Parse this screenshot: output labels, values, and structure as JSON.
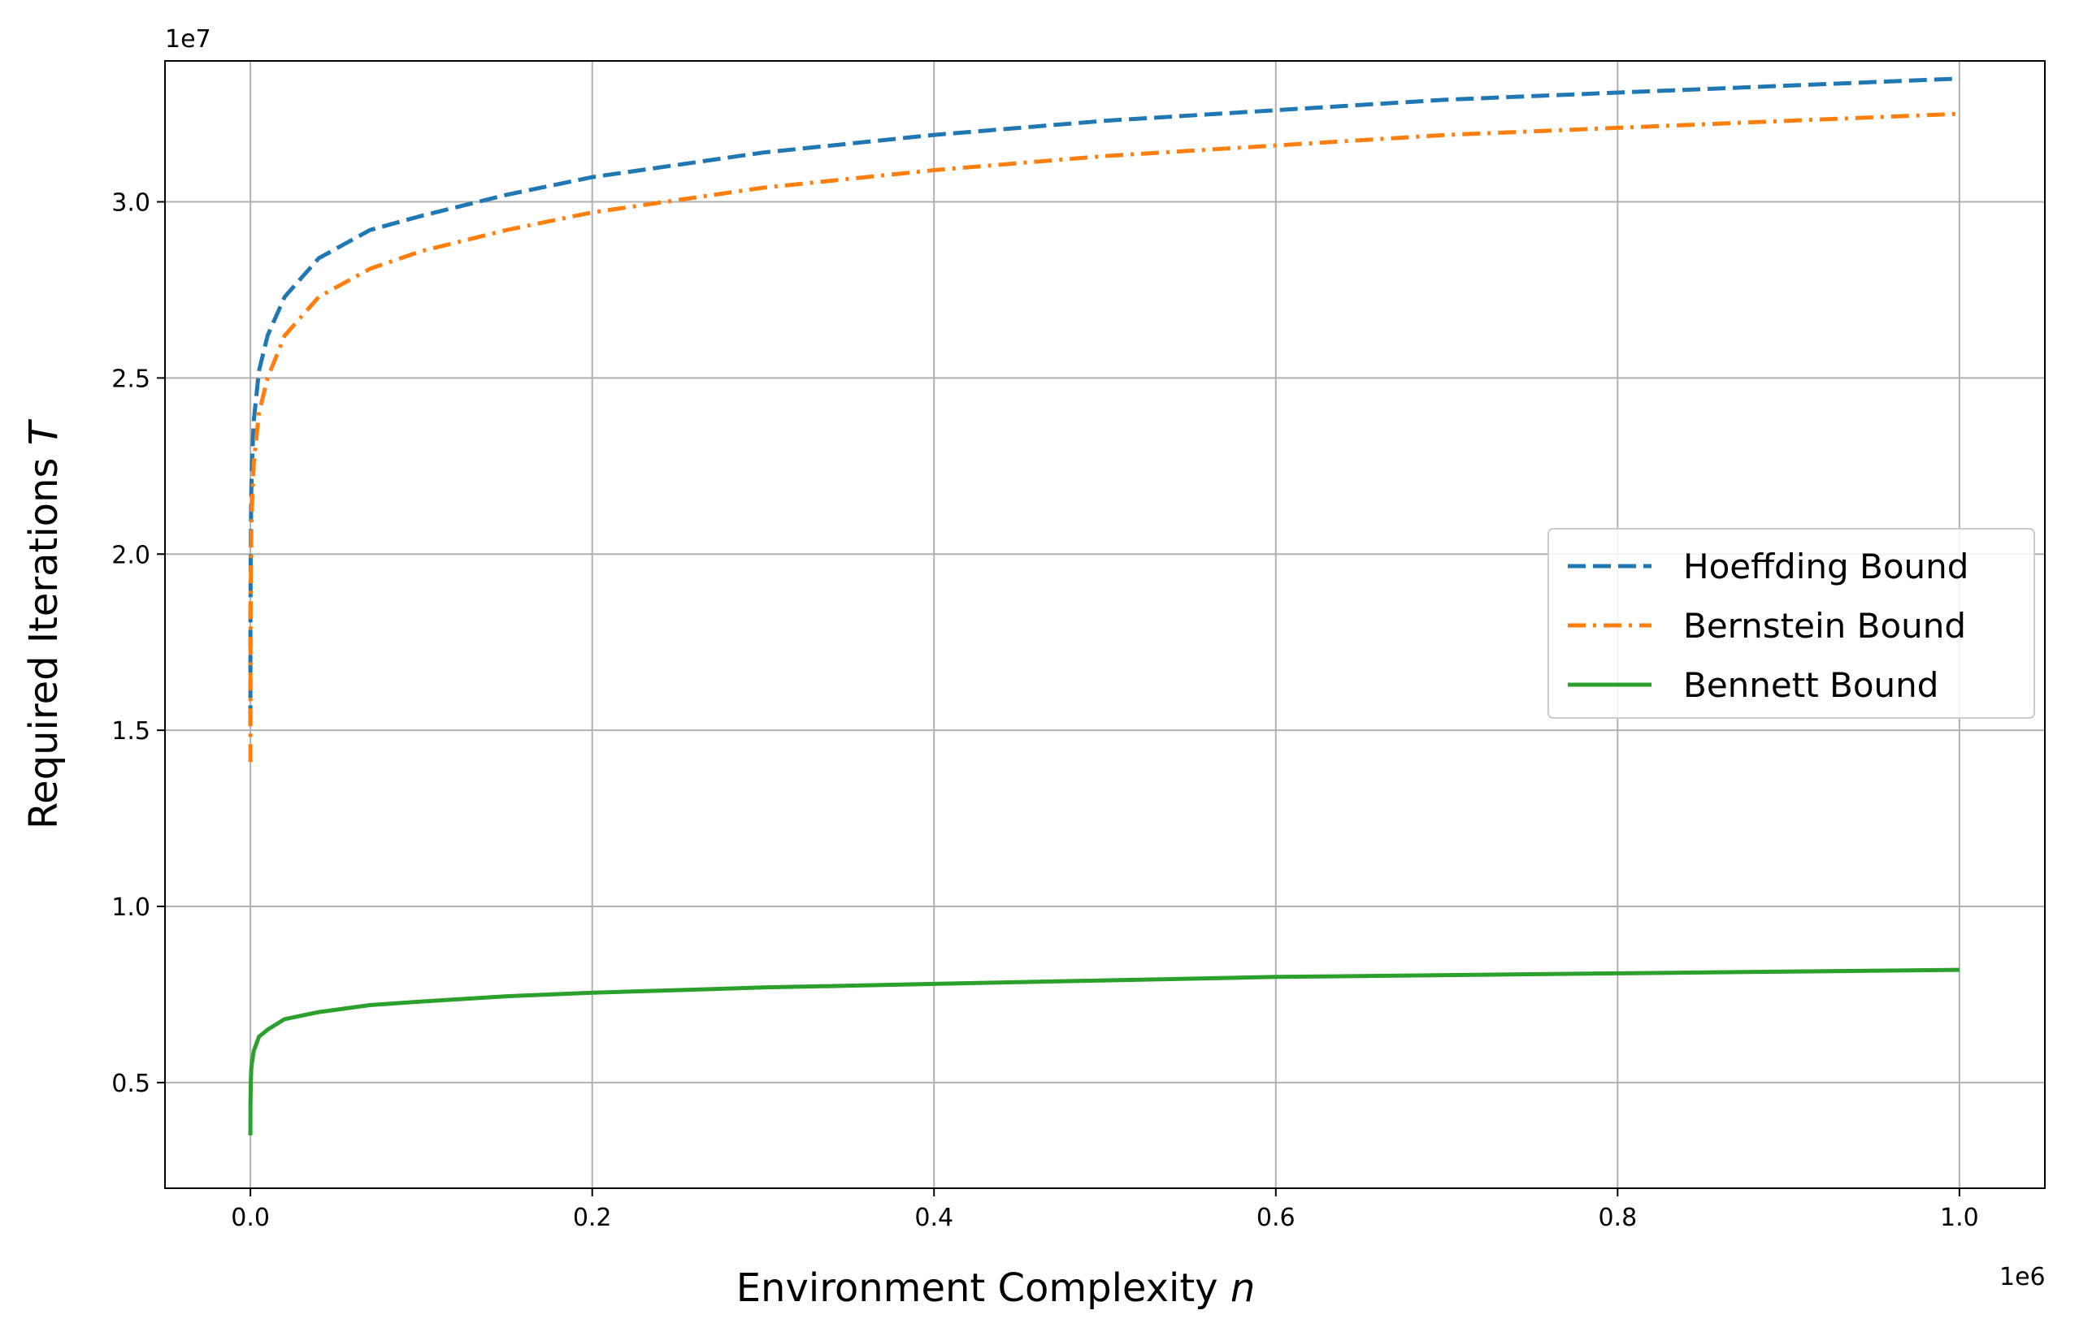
{
  "chart_data": {
    "type": "line",
    "xlabel": "Environment Complexity",
    "xlabel_var": "n",
    "ylabel": "Required Iterations",
    "ylabel_var": "T",
    "x_offset_text": "1e6",
    "y_offset_text": "1e7",
    "xlim": [
      -0.05,
      1.05
    ],
    "ylim": [
      0.2,
      3.4
    ],
    "xticks": [
      0.0,
      0.2,
      0.4,
      0.6,
      0.8,
      1.0
    ],
    "xtick_labels": [
      "0.0",
      "0.2",
      "0.4",
      "0.6",
      "0.8",
      "1.0"
    ],
    "yticks": [
      0.5,
      1.0,
      1.5,
      2.0,
      2.5,
      3.0
    ],
    "ytick_labels": [
      "0.5",
      "1.0",
      "1.5",
      "2.0",
      "2.5",
      "3.0"
    ],
    "grid": true,
    "legend_position": "center-right",
    "x": [
      0.0,
      5e-05,
      0.0002,
      0.0005,
      0.001,
      0.002,
      0.005,
      0.01,
      0.02,
      0.04,
      0.07,
      0.1,
      0.15,
      0.2,
      0.3,
      0.4,
      0.5,
      0.6,
      0.7,
      0.8,
      0.9,
      1.0
    ],
    "series": [
      {
        "name": "Hoeffding Bound",
        "color": "#1f77b4",
        "dash": "dashed",
        "values": [
          1.52,
          1.84,
          2.05,
          2.18,
          2.27,
          2.38,
          2.52,
          2.62,
          2.73,
          2.84,
          2.92,
          2.96,
          3.02,
          3.07,
          3.14,
          3.19,
          3.23,
          3.26,
          3.29,
          3.31,
          3.33,
          3.35
        ]
      },
      {
        "name": "Bernstein Bound",
        "color": "#ff7f0e",
        "dash": "dashdot",
        "values": [
          1.41,
          1.73,
          1.93,
          2.06,
          2.15,
          2.26,
          2.4,
          2.5,
          2.62,
          2.73,
          2.81,
          2.86,
          2.92,
          2.97,
          3.04,
          3.09,
          3.13,
          3.16,
          3.19,
          3.21,
          3.23,
          3.25
        ]
      },
      {
        "name": "Bennett Bound",
        "color": "#2ca02c",
        "dash": "solid",
        "values": [
          0.35,
          0.44,
          0.5,
          0.54,
          0.56,
          0.59,
          0.63,
          0.65,
          0.68,
          0.7,
          0.72,
          0.73,
          0.745,
          0.755,
          0.77,
          0.78,
          0.79,
          0.8,
          0.805,
          0.81,
          0.815,
          0.82
        ]
      }
    ]
  }
}
